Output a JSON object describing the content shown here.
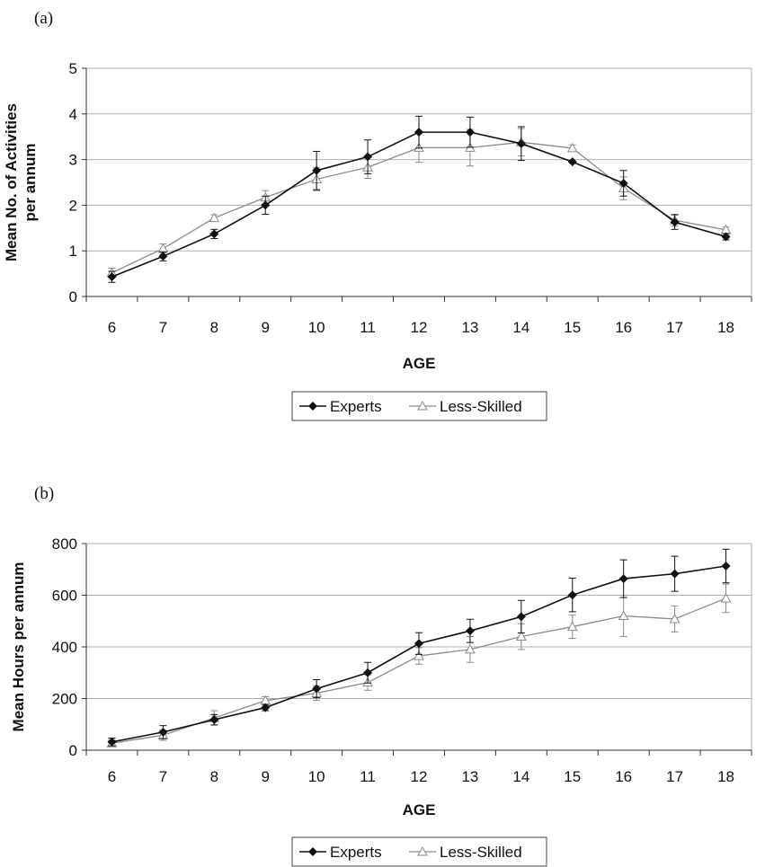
{
  "panels": {
    "a": "(a)",
    "b": "(b)"
  },
  "colors": {
    "experts": "#111111",
    "less_skilled": "#8a8a8a",
    "grid": "#b0b0b0",
    "axis": "#333333"
  },
  "chart_data": [
    {
      "type": "line",
      "panel_label": "(a)",
      "xlabel": "AGE",
      "ylabel": "Mean No. of Activities per annum",
      "ylabel_lines": [
        "Mean No. of Activities",
        "per annum"
      ],
      "x": [
        6,
        7,
        8,
        9,
        10,
        11,
        12,
        13,
        14,
        15,
        16,
        17,
        18
      ],
      "ylim": [
        0,
        5
      ],
      "yticks": [
        0,
        1,
        2,
        3,
        4,
        5
      ],
      "grid": true,
      "legend_placement": "bottom",
      "series": [
        {
          "name": "Experts",
          "marker": "diamond",
          "values": [
            0.43,
            0.88,
            1.37,
            2.0,
            2.76,
            3.06,
            3.6,
            3.6,
            3.35,
            2.95,
            2.48,
            1.63,
            1.31
          ],
          "errors": [
            0.12,
            0.1,
            0.1,
            0.2,
            0.42,
            0.37,
            0.35,
            0.33,
            0.37,
            0.0,
            0.28,
            0.16,
            0.07
          ]
        },
        {
          "name": "Less-Skilled",
          "marker": "triangle",
          "values": [
            0.52,
            1.05,
            1.72,
            2.17,
            2.57,
            2.83,
            3.26,
            3.26,
            3.38,
            3.25,
            2.37,
            1.67,
            1.46
          ],
          "errors": [
            0.1,
            0.1,
            0.07,
            0.15,
            0.25,
            0.24,
            0.32,
            0.4,
            0.3,
            0.07,
            0.25,
            0.13,
            0.06
          ]
        }
      ]
    },
    {
      "type": "line",
      "panel_label": "(b)",
      "xlabel": "AGE",
      "ylabel": "Mean Hours per annum",
      "ylabel_lines": [
        "Mean Hours per annum"
      ],
      "x": [
        6,
        7,
        8,
        9,
        10,
        11,
        12,
        13,
        14,
        15,
        16,
        17,
        18
      ],
      "ylim": [
        0,
        800
      ],
      "yticks": [
        0,
        200,
        400,
        600,
        800
      ],
      "grid": true,
      "legend_placement": "bottom",
      "series": [
        {
          "name": "Experts",
          "marker": "diamond",
          "values": [
            32,
            70,
            118,
            165,
            238,
            300,
            413,
            462,
            517,
            601,
            664,
            683,
            713
          ],
          "errors": [
            15,
            25,
            20,
            12,
            35,
            40,
            42,
            45,
            63,
            65,
            73,
            68,
            65
          ]
        },
        {
          "name": "Less-Skilled",
          "marker": "triangle",
          "values": [
            27,
            58,
            125,
            192,
            221,
            262,
            365,
            390,
            440,
            478,
            520,
            508,
            588
          ],
          "errors": [
            12,
            20,
            28,
            15,
            28,
            30,
            32,
            50,
            50,
            45,
            80,
            50,
            55
          ]
        }
      ]
    }
  ]
}
